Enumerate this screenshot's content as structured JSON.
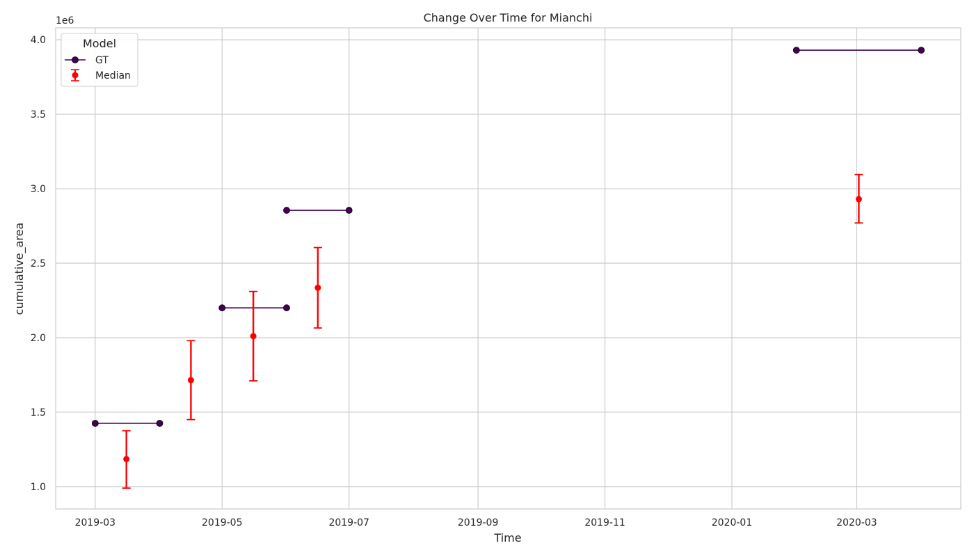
{
  "chart_data": {
    "type": "line",
    "title": "Change Over Time for Mianchi",
    "xlabel": "Time",
    "ylabel": "cumulative_area",
    "y_offset_label": "1e6",
    "y_scale_factor": 1000000,
    "xlim": [
      "2019-02-10",
      "2020-04-20"
    ],
    "ylim": [
      850000,
      4080000
    ],
    "x_ticks": [
      "2019-03-01",
      "2019-05-01",
      "2019-07-01",
      "2019-09-01",
      "2019-11-01",
      "2020-01-01",
      "2020-03-01"
    ],
    "x_tick_labels": [
      "2019-03",
      "2019-05",
      "2019-07",
      "2019-09",
      "2019-11",
      "2020-01",
      "2020-03"
    ],
    "y_ticks": [
      1000000,
      1500000,
      2000000,
      2500000,
      3000000,
      3500000,
      4000000
    ],
    "y_tick_labels": [
      "1.0",
      "1.5",
      "2.0",
      "2.5",
      "3.0",
      "3.5",
      "4.0"
    ],
    "grid": true,
    "legend": {
      "title": "Model",
      "position": "top-left"
    },
    "series": [
      {
        "name": "GT",
        "kind": "line-markers",
        "color": "#440154",
        "segments": [
          [
            {
              "x": "2019-03-01",
              "y": 1425000
            },
            {
              "x": "2019-04-01",
              "y": 1425000
            }
          ],
          [
            {
              "x": "2019-05-01",
              "y": 2200000
            },
            {
              "x": "2019-06-01",
              "y": 2200000
            }
          ],
          [
            {
              "x": "2019-06-01",
              "y": 2855000
            },
            {
              "x": "2019-07-01",
              "y": 2855000
            }
          ],
          [
            {
              "x": "2020-02-01",
              "y": 3930000
            },
            {
              "x": "2020-04-01",
              "y": 3930000
            }
          ]
        ]
      },
      {
        "name": "Median",
        "kind": "errorbar",
        "color": "#ff0000",
        "points": [
          {
            "x": "2019-03-16",
            "y": 1185000,
            "low": 990000,
            "high": 1375000
          },
          {
            "x": "2019-04-16",
            "y": 1715000,
            "low": 1450000,
            "high": 1980000
          },
          {
            "x": "2019-05-16",
            "y": 2010000,
            "low": 1710000,
            "high": 2310000
          },
          {
            "x": "2019-06-16",
            "y": 2335000,
            "low": 2065000,
            "high": 2605000
          },
          {
            "x": "2020-03-02",
            "y": 2930000,
            "low": 2770000,
            "high": 3095000
          }
        ]
      }
    ]
  }
}
